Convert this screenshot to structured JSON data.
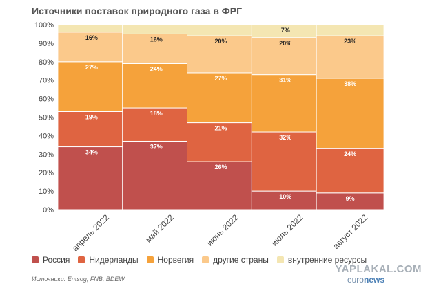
{
  "chart_data": {
    "type": "bar",
    "stacked": true,
    "title": "Источники поставок природного газа в ФРГ",
    "categories": [
      "апрель 2022",
      "май 2022",
      "июнь 2022",
      "июль 2022",
      "август 2022"
    ],
    "ylim": [
      0,
      100
    ],
    "yticks": [
      "0%",
      "10%",
      "20%",
      "30%",
      "40%",
      "50%",
      "60%",
      "70%",
      "80%",
      "90%",
      "100%"
    ],
    "grid": true,
    "legend_position": "bottom",
    "series": [
      {
        "name": "Россия",
        "color": "#c0504d",
        "values": [
          34,
          37,
          26,
          10,
          9
        ],
        "labels": [
          "34%",
          "37%",
          "26%",
          "10%",
          "9%"
        ]
      },
      {
        "name": "Нидерланды",
        "color": "#df6441",
        "values": [
          19,
          18,
          21,
          32,
          24
        ],
        "labels": [
          "19%",
          "18%",
          "21%",
          "32%",
          "24%"
        ]
      },
      {
        "name": "Норвегия",
        "color": "#f5a23b",
        "values": [
          27,
          24,
          27,
          31,
          38
        ],
        "labels": [
          "27%",
          "24%",
          "27%",
          "31%",
          "38%"
        ]
      },
      {
        "name": "другие страны",
        "color": "#fbc98b",
        "values": [
          16,
          16,
          20,
          20,
          23
        ],
        "labels": [
          "16%",
          "16%",
          "20%",
          "20%",
          "23%"
        ]
      },
      {
        "name": "внутренние ресурсы",
        "color": "#f4e6b2",
        "values": [
          4,
          5,
          6,
          7,
          6
        ],
        "labels": [
          "",
          "",
          "",
          "7%",
          ""
        ]
      }
    ]
  },
  "source": "Источники: Entsog, FNB, BDEW",
  "watermarks": {
    "site": "YAPLAKAL.COM",
    "brand_euro": "euro",
    "brand_news": "news"
  }
}
